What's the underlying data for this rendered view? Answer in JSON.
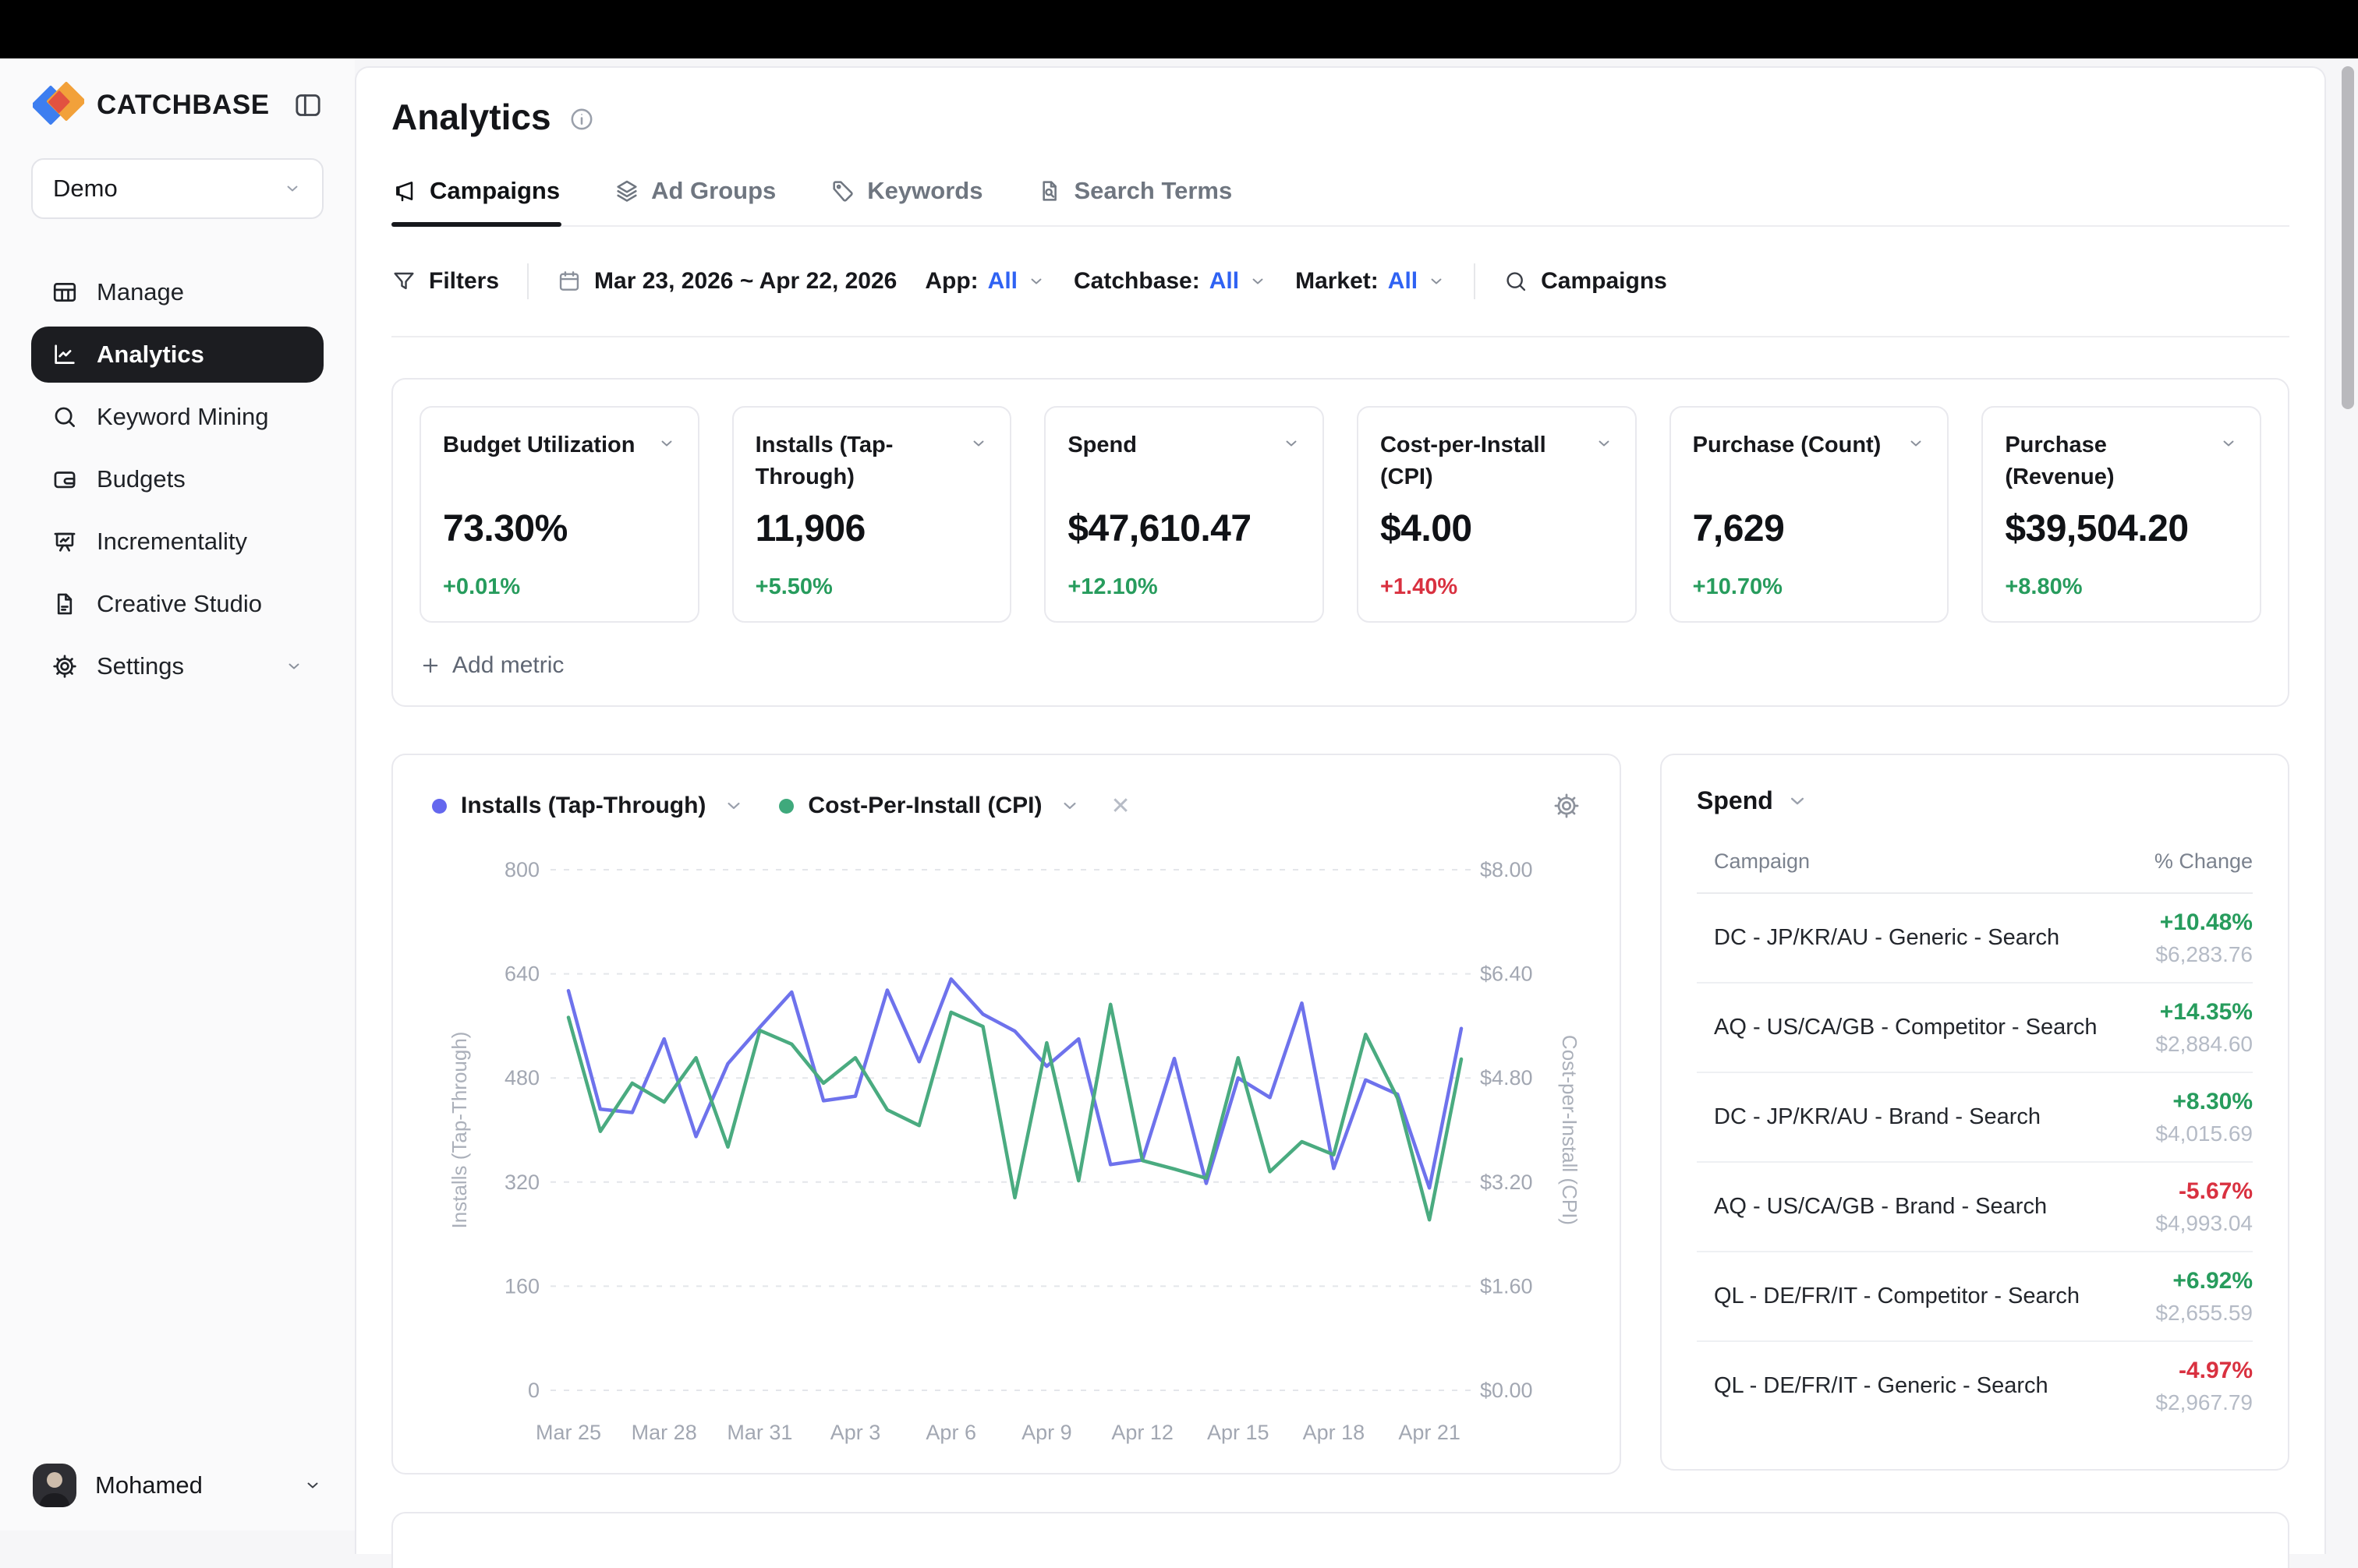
{
  "sidebar": {
    "brand": "CATCHBASE",
    "workspace": "Demo",
    "items": [
      {
        "label": "Manage",
        "icon": "grid"
      },
      {
        "label": "Analytics",
        "icon": "analytics",
        "active": true
      },
      {
        "label": "Keyword Mining",
        "icon": "search"
      },
      {
        "label": "Budgets",
        "icon": "wallet"
      },
      {
        "label": "Incrementality",
        "icon": "presentation"
      },
      {
        "label": "Creative Studio",
        "icon": "document"
      },
      {
        "label": "Settings",
        "icon": "gear",
        "chevron": true
      }
    ],
    "user": {
      "name": "Mohamed"
    }
  },
  "header": {
    "title": "Analytics",
    "tabs": [
      {
        "label": "Campaigns",
        "icon": "megaphone",
        "active": true
      },
      {
        "label": "Ad Groups",
        "icon": "layers"
      },
      {
        "label": "Keywords",
        "icon": "tag"
      },
      {
        "label": "Search Terms",
        "icon": "doc-search"
      }
    ]
  },
  "filters": {
    "filters_label": "Filters",
    "date_range": "Mar 23, 2026 ~ Apr 22, 2026",
    "dropdowns": [
      {
        "label": "App:",
        "value": "All"
      },
      {
        "label": "Catchbase:",
        "value": "All"
      },
      {
        "label": "Market:",
        "value": "All"
      }
    ],
    "search_label": "Campaigns"
  },
  "metrics": {
    "add_label": "Add metric",
    "cards": [
      {
        "label": "Budget Utilization",
        "value": "73.30%",
        "delta": "+0.01%",
        "delta_color": "green"
      },
      {
        "label": "Installs (Tap-Through)",
        "value": "11,906",
        "delta": "+5.50%",
        "delta_color": "green"
      },
      {
        "label": "Spend",
        "value": "$47,610.47",
        "delta": "+12.10%",
        "delta_color": "green"
      },
      {
        "label": "Cost-per-Install (CPI)",
        "value": "$4.00",
        "delta": "+1.40%",
        "delta_color": "red"
      },
      {
        "label": "Purchase (Count)",
        "value": "7,629",
        "delta": "+10.70%",
        "delta_color": "green"
      },
      {
        "label": "Purchase (Revenue)",
        "value": "$39,504.20",
        "delta": "+8.80%",
        "delta_color": "green"
      }
    ]
  },
  "chart_card": {
    "legend": [
      {
        "label": "Installs (Tap-Through)",
        "color": "#6467ee"
      },
      {
        "label": "Cost-Per-Install (CPI)",
        "color": "#3fa97c",
        "removable": true
      }
    ],
    "close_glyph": "✕"
  },
  "chart_data": {
    "type": "line",
    "title": "",
    "x": [
      "Mar 25",
      "Mar 26",
      "Mar 27",
      "Mar 28",
      "Mar 29",
      "Mar 30",
      "Mar 31",
      "Apr 1",
      "Apr 2",
      "Apr 3",
      "Apr 4",
      "Apr 5",
      "Apr 6",
      "Apr 7",
      "Apr 8",
      "Apr 9",
      "Apr 10",
      "Apr 11",
      "Apr 12",
      "Apr 13",
      "Apr 14",
      "Apr 15",
      "Apr 16",
      "Apr 17",
      "Apr 18",
      "Apr 19",
      "Apr 20",
      "Apr 21",
      "Apr 22"
    ],
    "x_tick_indices": [
      0,
      3,
      6,
      9,
      12,
      15,
      18,
      21,
      24,
      27
    ],
    "series": [
      {
        "name": "Installs (Tap-Through)",
        "axis": "left",
        "color": "#6e72ec",
        "values": [
          614,
          432,
          427,
          540,
          390,
          502,
          558,
          612,
          445,
          452,
          615,
          505,
          632,
          578,
          552,
          498,
          540,
          347,
          354,
          510,
          318,
          480,
          450,
          595,
          341,
          477,
          455,
          311,
          556
        ]
      },
      {
        "name": "Cost-Per-Install (CPI)",
        "axis": "right",
        "color": "#4aab80",
        "values": [
          5.73,
          3.98,
          4.72,
          4.43,
          5.11,
          3.74,
          5.53,
          5.32,
          4.72,
          5.11,
          4.31,
          4.07,
          5.81,
          5.59,
          2.96,
          5.34,
          3.22,
          5.93,
          3.53,
          3.4,
          3.26,
          5.11,
          3.36,
          3.82,
          3.62,
          5.47,
          4.49,
          2.62,
          5.09
        ]
      }
    ],
    "left_axis": {
      "label": "Installs (Tap-Through)",
      "ticks": [
        0,
        160,
        320,
        480,
        640,
        800
      ],
      "range": [
        0,
        800
      ]
    },
    "right_axis": {
      "label": "Cost-per-Install (CPI)",
      "ticks": [
        "$0.00",
        "$1.60",
        "$3.20",
        "$4.80",
        "$6.40",
        "$8.00"
      ],
      "range": [
        0,
        8
      ]
    },
    "grid": "horizontal-dashed",
    "legend_position": "top-left"
  },
  "spend_panel": {
    "title": "Spend",
    "columns": {
      "campaign": "Campaign",
      "change": "% Change"
    },
    "rows": [
      {
        "campaign": "DC - JP/KR/AU - Generic - Search",
        "change": "+10.48%",
        "change_color": "green",
        "amount": "$6,283.76"
      },
      {
        "campaign": "AQ - US/CA/GB - Competitor - Search",
        "change": "+14.35%",
        "change_color": "green",
        "amount": "$2,884.60"
      },
      {
        "campaign": "DC - JP/KR/AU - Brand - Search",
        "change": "+8.30%",
        "change_color": "green",
        "amount": "$4,015.69"
      },
      {
        "campaign": "AQ - US/CA/GB - Brand - Search",
        "change": "-5.67%",
        "change_color": "red",
        "amount": "$4,993.04"
      },
      {
        "campaign": "QL - DE/FR/IT - Competitor - Search",
        "change": "+6.92%",
        "change_color": "green",
        "amount": "$2,655.59"
      },
      {
        "campaign": "QL - DE/FR/IT - Generic - Search",
        "change": "-4.97%",
        "change_color": "red",
        "amount": "$2,967.79"
      }
    ]
  },
  "status_colors": {
    "positive": "#279c5d",
    "negative": "#d93140",
    "link_blue": "#2f62f3"
  }
}
